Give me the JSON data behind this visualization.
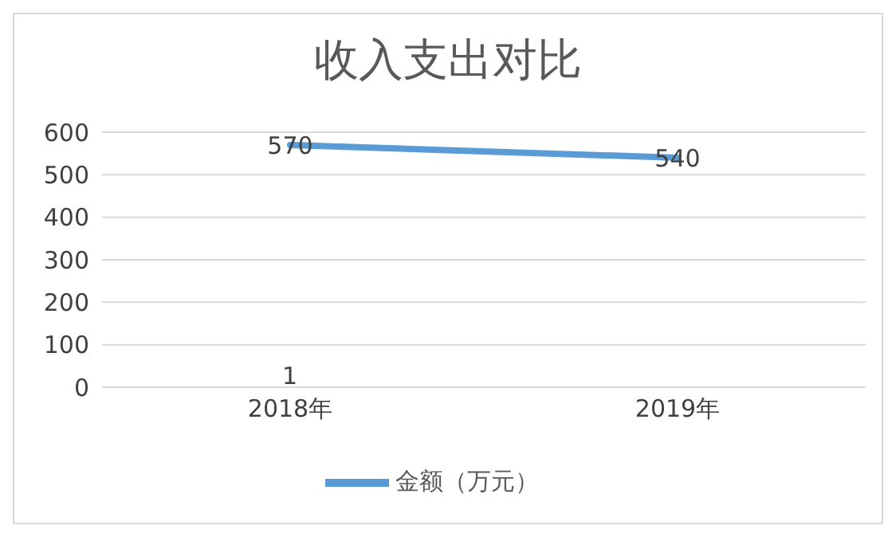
{
  "chart_data": {
    "type": "line",
    "title": "收入支出对比",
    "categories": [
      "2018年",
      "2019年"
    ],
    "series": [
      {
        "name": "金额（万元）",
        "color": "#5b9bd5",
        "values": [
          570,
          540
        ]
      }
    ],
    "ylim": [
      0,
      600
    ],
    "yticks": [
      0,
      100,
      200,
      300,
      400,
      500,
      600
    ],
    "grid": "y",
    "legend": "bottom",
    "data_labels": true,
    "marker": "none",
    "annotations": [
      "1"
    ]
  }
}
